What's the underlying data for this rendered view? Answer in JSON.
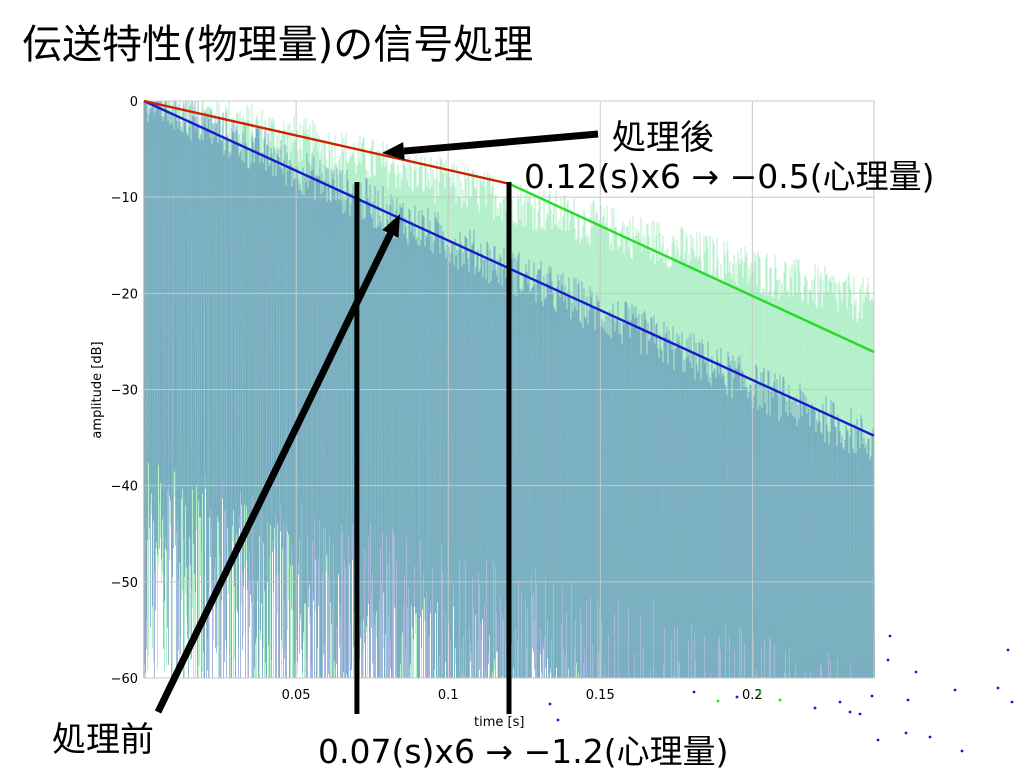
{
  "slide": {
    "title": "伝送特性(物理量)の信号処理"
  },
  "annotations": {
    "after_label": "処理後",
    "before_label": "処理前",
    "after_note": "0.12(s)x6 → −0.5(心理量)",
    "before_note": "0.07(s)x6 → −1.2(心理量)"
  },
  "colors": {
    "before_line": "#1a1acc",
    "after_line_processed": "#cc2200",
    "after_line_rest": "#22dd22",
    "noise_before": "#2d5fb0",
    "noise_after": "#55dd88",
    "grid": "#c8c8c8",
    "annotation": "#000000"
  },
  "chart_data": {
    "type": "line",
    "xlabel": "time [s]",
    "ylabel": "amplitude [dB]",
    "xlim": [
      0,
      0.24
    ],
    "ylim": [
      -60,
      0
    ],
    "xticks": [
      0.05,
      0.1,
      0.15,
      0.2
    ],
    "xtick_labels": [
      "0.05",
      "0.1",
      "0.15",
      "0.2"
    ],
    "yticks": [
      0,
      -10,
      -20,
      -30,
      -40,
      -50,
      -60
    ],
    "ytick_labels": [
      "0",
      "−10",
      "−20",
      "−30",
      "−40",
      "−50",
      "−60"
    ],
    "grid": true,
    "series": [
      {
        "key": "before",
        "x": [
          0,
          0.24
        ],
        "y": [
          0,
          -34.8
        ]
      },
      {
        "key": "after_processed",
        "x": [
          0,
          0.12
        ],
        "y": [
          0,
          -8.6
        ]
      },
      {
        "key": "after_rest",
        "x": [
          0.12,
          0.24
        ],
        "y": [
          -8.6,
          -26.1
        ]
      }
    ],
    "markers_x": [
      0.07,
      0.12
    ]
  }
}
